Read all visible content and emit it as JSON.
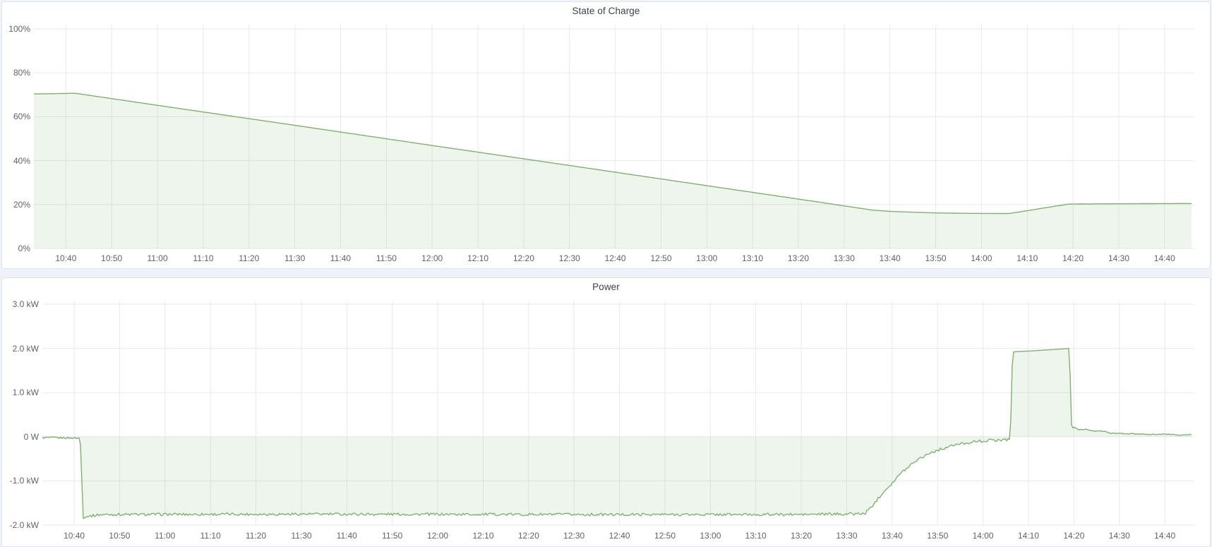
{
  "page": {
    "background_color": "#eff2f7",
    "panel_background": "#ffffff",
    "panel_border_color": "#dde3ee"
  },
  "colors": {
    "series_green": "#7EB26D",
    "area_fill": "rgba(126,178,109,0.13)",
    "gridline": "#e9eaee",
    "tick_text": "#5e626b",
    "title_text": "#3c414b"
  },
  "chart_data": [
    {
      "type": "area",
      "title": "State of Charge",
      "unit": "percent",
      "grid": true,
      "legend": "none",
      "baseline_value": 0,
      "x_axis": {
        "start": "10:33",
        "end": "14:46:30",
        "tick_labels": [
          "10:40",
          "10:50",
          "11:00",
          "11:10",
          "11:20",
          "11:30",
          "11:40",
          "11:50",
          "12:00",
          "12:10",
          "12:20",
          "12:30",
          "12:40",
          "12:50",
          "13:00",
          "13:10",
          "13:20",
          "13:30",
          "13:40",
          "13:50",
          "14:00",
          "14:10",
          "14:20",
          "14:30",
          "14:40"
        ]
      },
      "y_axis": {
        "min": 0,
        "max": 100,
        "tick_labels": [
          "100%",
          "80%",
          "60%",
          "40%",
          "20%",
          "0%"
        ],
        "tick_values": [
          100,
          80,
          60,
          40,
          20,
          0
        ]
      },
      "series": [
        {
          "name": "State of Charge",
          "color": "#7EB26D",
          "points": [
            [
              "10:33",
              70.4
            ],
            [
              "10:37",
              70.5
            ],
            [
              "10:42",
              70.7
            ],
            [
              "11:00",
              65.2
            ],
            [
              "11:30",
              56.1
            ],
            [
              "12:00",
              46.9
            ],
            [
              "12:30",
              37.8
            ],
            [
              "13:00",
              28.6
            ],
            [
              "13:20",
              22.5
            ],
            [
              "13:30",
              19.4
            ],
            [
              "13:36",
              17.5
            ],
            [
              "13:40",
              16.9
            ],
            [
              "13:45",
              16.5
            ],
            [
              "13:50",
              16.2
            ],
            [
              "13:56",
              16.0
            ],
            [
              "14:06",
              15.9
            ],
            [
              "14:10",
              17.2
            ],
            [
              "14:15",
              18.9
            ],
            [
              "14:19",
              20.2
            ],
            [
              "14:24",
              20.3
            ],
            [
              "14:34",
              20.4
            ],
            [
              "14:46",
              20.5
            ]
          ],
          "noise_segments": []
        }
      ]
    },
    {
      "type": "area",
      "title": "Power",
      "unit": "watt",
      "grid": true,
      "legend": "none",
      "baseline_value": 0,
      "x_axis": {
        "start": "10:33",
        "end": "14:46:30",
        "tick_labels": [
          "10:40",
          "10:50",
          "11:00",
          "11:10",
          "11:20",
          "11:30",
          "11:40",
          "11:50",
          "12:00",
          "12:10",
          "12:20",
          "12:30",
          "12:40",
          "12:50",
          "13:00",
          "13:10",
          "13:20",
          "13:30",
          "13:40",
          "13:50",
          "14:00",
          "14:10",
          "14:20",
          "14:30",
          "14:40"
        ]
      },
      "y_axis": {
        "min": -2.0,
        "max": 3.0,
        "tick_labels": [
          "3.0 kW",
          "2.0 kW",
          "1.0 kW",
          "0 W",
          "-1.0 kW",
          "-2.0 kW"
        ],
        "tick_values": [
          3,
          2,
          1,
          0,
          -1,
          -2
        ]
      },
      "series": [
        {
          "name": "Power",
          "color": "#7EB26D",
          "points": [
            [
              "10:33",
              -0.02
            ],
            [
              "10:41:20",
              -0.03
            ],
            [
              "10:42",
              -1.85
            ],
            [
              "10:43",
              -1.8
            ],
            [
              "10:46",
              -1.76
            ],
            [
              "11:30",
              -1.75
            ],
            [
              "12:30",
              -1.76
            ],
            [
              "13:20",
              -1.76
            ],
            [
              "13:34",
              -1.74
            ],
            [
              "13:36",
              -1.52
            ],
            [
              "13:38",
              -1.25
            ],
            [
              "13:40",
              -1.05
            ],
            [
              "13:42",
              -0.82
            ],
            [
              "13:45",
              -0.55
            ],
            [
              "13:48",
              -0.38
            ],
            [
              "13:51",
              -0.27
            ],
            [
              "13:54",
              -0.18
            ],
            [
              "13:58",
              -0.11
            ],
            [
              "14:02",
              -0.08
            ],
            [
              "14:06",
              -0.06
            ],
            [
              "14:06:30",
              1.92
            ],
            [
              "14:10",
              1.94
            ],
            [
              "14:15",
              1.97
            ],
            [
              "14:19",
              2.0
            ],
            [
              "14:19:30",
              0.17
            ],
            [
              "14:20",
              0.22
            ],
            [
              "14:21",
              0.16
            ],
            [
              "14:23",
              0.17
            ],
            [
              "14:24",
              0.13
            ],
            [
              "14:27",
              0.12
            ],
            [
              "14:28",
              0.08
            ],
            [
              "14:32",
              0.07
            ],
            [
              "14:36",
              0.05
            ],
            [
              "14:40",
              0.06
            ],
            [
              "14:43",
              0.04
            ],
            [
              "14:46",
              0.05
            ]
          ],
          "noise_segments": [
            {
              "from": "10:33",
              "to": "10:41:20",
              "amplitude": 0.02
            },
            {
              "from": "10:43",
              "to": "14:05:30",
              "amplitude": 0.03
            },
            {
              "from": "14:20:30",
              "to": "14:46",
              "amplitude": 0.01
            }
          ]
        }
      ]
    }
  ]
}
